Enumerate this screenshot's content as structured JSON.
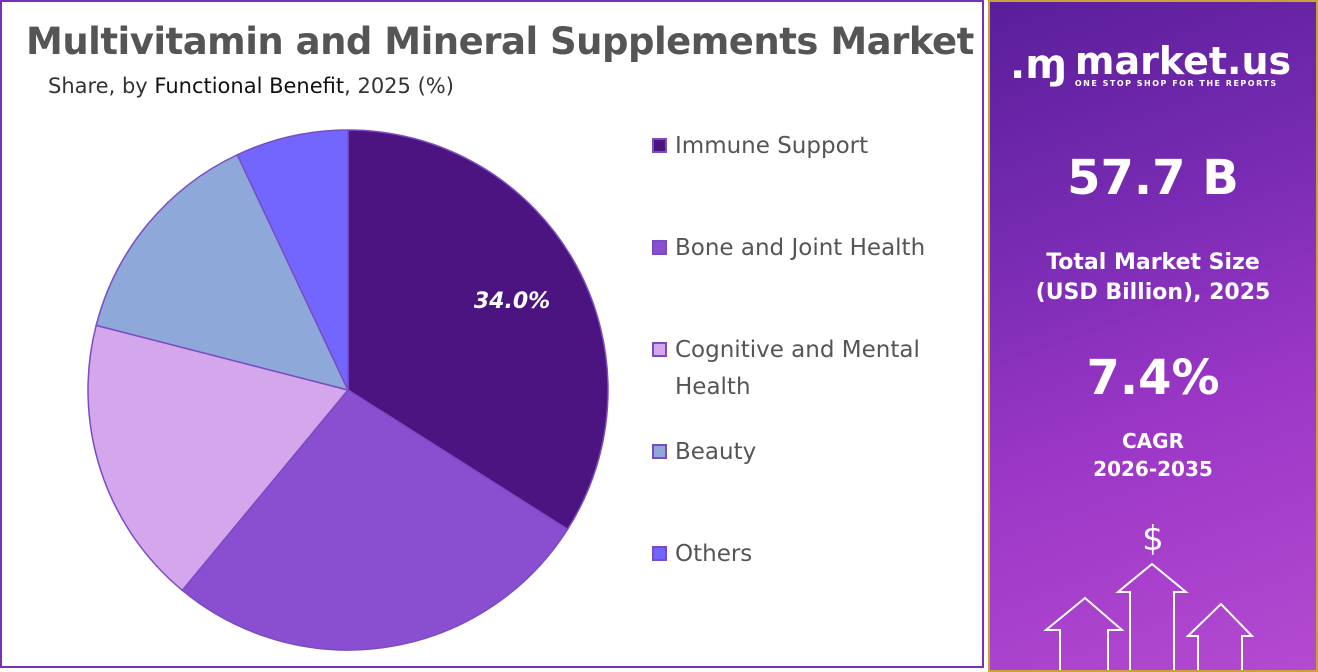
{
  "chart_data": {
    "type": "pie",
    "title": "Multivitamin and Mineral Supplements Market",
    "subtitle_prefix": "Share, by ",
    "subtitle_segment": "Functional Benefit",
    "subtitle_suffix": ", 2025 (%)",
    "categories": [
      "Immune Support",
      "Bone and Joint Health",
      "Cognitive and Mental Health",
      "Beauty",
      "Others"
    ],
    "values": [
      34.0,
      27.0,
      18.0,
      14.0,
      7.0
    ],
    "colors": [
      "#4b1480",
      "#8a4fd0",
      "#d4a6ec",
      "#8fa8da",
      "#7366ff"
    ],
    "data_labels": [
      "34.0%",
      null,
      null,
      null,
      null
    ],
    "legend_position": "right"
  },
  "sidebar": {
    "brand": "market.us",
    "tagline": "ONE STOP SHOP FOR THE REPORTS",
    "market_size": "57.7 B",
    "market_size_label_1": "Total Market Size",
    "market_size_label_2": "(USD Billion), 2025",
    "cagr": "7.4%",
    "cagr_label_1": "CAGR",
    "cagr_label_2": "2026-2035",
    "currency_symbol": "$"
  }
}
